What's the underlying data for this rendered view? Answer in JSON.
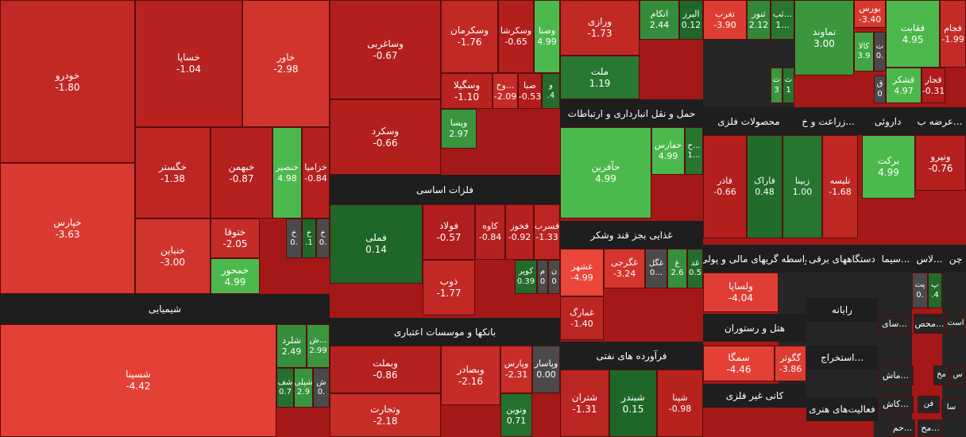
{
  "tiles": [
    {
      "label": "خودرو",
      "change": "-1.80"
    },
    {
      "label": "خساپا",
      "change": "-1.04"
    },
    {
      "label": "خاور",
      "change": "-2.98"
    },
    {
      "label": "خپارس",
      "change": "-3.63"
    },
    {
      "label": "خگستر",
      "change": "-1.38"
    },
    {
      "label": "خبهمن",
      "change": "-0.87"
    },
    {
      "label": "خنصير",
      "change": "4.98"
    },
    {
      "label": "خزاميا",
      "change": "-0.84"
    },
    {
      "label": "خنباين",
      "change": "-3.00"
    },
    {
      "label": "ختوقا",
      "change": "-2.05"
    },
    {
      "label": "خمحور",
      "change": "4.99"
    },
    {
      "label": "خ",
      "change": "0."
    },
    {
      "label": "خ",
      "change": ".1"
    },
    {
      "label": "خ",
      "change": "0."
    },
    {
      "label": "شسینا",
      "change": "-4.42"
    },
    {
      "label": "شلرد",
      "change": "2.49"
    },
    {
      "label": "ش...",
      "change": "2.99"
    },
    {
      "label": "شف",
      "change": "0.7"
    },
    {
      "label": "شپلی",
      "change": "2.9"
    },
    {
      "label": "ش",
      "change": "0."
    },
    {
      "label": "وساغربی",
      "change": "-0.67"
    },
    {
      "label": "وسکرمان",
      "change": "-1.76"
    },
    {
      "label": "وسکرشا",
      "change": "-0.65"
    },
    {
      "label": "وصنا",
      "change": "4.99"
    },
    {
      "label": "وسکرد",
      "change": "-0.66"
    },
    {
      "label": "وسگیلا",
      "change": "-1.10"
    },
    {
      "label": "وخ...",
      "change": "-2.09"
    },
    {
      "label": "صبا",
      "change": "-0.53"
    },
    {
      "label": "و",
      "change": ".4"
    },
    {
      "label": "وپسا",
      "change": "2.97"
    },
    {
      "label": "فملی",
      "change": "0.14"
    },
    {
      "label": "فولاد",
      "change": "-0.57"
    },
    {
      "label": "کاوه",
      "change": "-0.84"
    },
    {
      "label": "فخوز",
      "change": "-0.92"
    },
    {
      "label": "فسرب",
      "change": "-1.33"
    },
    {
      "label": "ذوب",
      "change": "-1.77"
    },
    {
      "label": "کویر",
      "change": "0.39"
    },
    {
      "label": "م",
      "change": "0"
    },
    {
      "label": "ن",
      "change": "0"
    },
    {
      "label": "وبملت",
      "change": "-0.86"
    },
    {
      "label": "وتجارت",
      "change": "-2.18"
    },
    {
      "label": "وبصادر",
      "change": "-2.16"
    },
    {
      "label": "وپارس",
      "change": "-2.31"
    },
    {
      "label": "وپاسار",
      "change": "0.00"
    },
    {
      "label": "ونوین",
      "change": "0.71"
    },
    {
      "label": "ورازی",
      "change": "-1.73"
    },
    {
      "label": "اتکام",
      "change": "2.44"
    },
    {
      "label": "البرز",
      "change": "0.12"
    },
    {
      "label": "ملت",
      "change": "1.19"
    },
    {
      "label": "حآفرین",
      "change": "4.99"
    },
    {
      "label": "حفارس",
      "change": "4.99"
    },
    {
      "label": "ح...",
      "change": "1..."
    },
    {
      "label": "غشهر",
      "change": "-4.99"
    },
    {
      "label": "غگرجی",
      "change": "-3.24"
    },
    {
      "label": "غگل",
      "change": "0..."
    },
    {
      "label": "غ",
      "change": "2.6"
    },
    {
      "label": "غد",
      "change": "0.5"
    },
    {
      "label": "غمارگ",
      "change": "-1.40"
    },
    {
      "label": "شتران",
      "change": "-1.31"
    },
    {
      "label": "شبندر",
      "change": "0.15"
    },
    {
      "label": "شپنا",
      "change": "-0.98"
    },
    {
      "label": "تغرب",
      "change": "-3.90"
    },
    {
      "label": "ثنور",
      "change": "2.12"
    },
    {
      "label": "ثب...",
      "change": "1..."
    },
    {
      "label": "تماوند",
      "change": "3.00"
    },
    {
      "label": "ث",
      "change": "3"
    },
    {
      "label": "ث",
      "change": "1"
    },
    {
      "label": "فاذر",
      "change": "-0.66"
    },
    {
      "label": "فاراک",
      "change": "0.48"
    },
    {
      "label": "زبینا",
      "change": "1.00"
    },
    {
      "label": "تلیسه",
      "change": "-1.68"
    },
    {
      "label": "ولساپا",
      "change": "-4.04"
    },
    {
      "label": "سمگا",
      "change": "-4.46"
    },
    {
      "label": "گگوثر",
      "change": "-3.86"
    },
    {
      "label": "بورس",
      "change": "-3.40"
    },
    {
      "label": "کالا",
      "change": "3.9"
    },
    {
      "label": "ت",
      "change": "0."
    },
    {
      "label": "فقابت",
      "change": "4.95"
    },
    {
      "label": "فجام",
      "change": "-1.99"
    },
    {
      "label": "قشکر",
      "change": "4.97"
    },
    {
      "label": "قجار",
      "change": "-0.31"
    },
    {
      "label": "ق",
      "change": "0"
    },
    {
      "label": "برکت",
      "change": "4.99"
    },
    {
      "label": "ونیرو",
      "change": "-0.76"
    },
    {
      "label": "پت",
      "change": "0."
    },
    {
      "label": "پ",
      "change": ".4"
    },
    {
      "label": "سای..."
    },
    {
      "label": "محص..."
    },
    {
      "label": "است"
    },
    {
      "label": "ماش..."
    },
    {
      "label": "مخ"
    },
    {
      "label": "س"
    },
    {
      "label": "کاش..."
    },
    {
      "label": "فن"
    },
    {
      "label": "سا"
    },
    {
      "label": "حم..."
    },
    {
      "label": "مح..."
    }
  ],
  "headers": [
    "شیمیایی",
    "فلزات اساسی",
    "بانکها و موسسات اعتباری",
    "حمل و نقل انبارداری و ارتباطات",
    "غذایی بجز قند وشکر",
    "فرآورده های نفتی",
    "محصولات فلزی",
    "زراعت و خ...",
    "داروئی",
    "عرضه ب...",
    "دستگاههای برقی",
    "واسطه گریهای مالی و پولی",
    "سیما...",
    "لاس...",
    "چن",
    "هتل و رستوران",
    "رایانه",
    "استخراج...",
    "کانی غیر فلزی",
    "فعالیت‌های هنری"
  ]
}
